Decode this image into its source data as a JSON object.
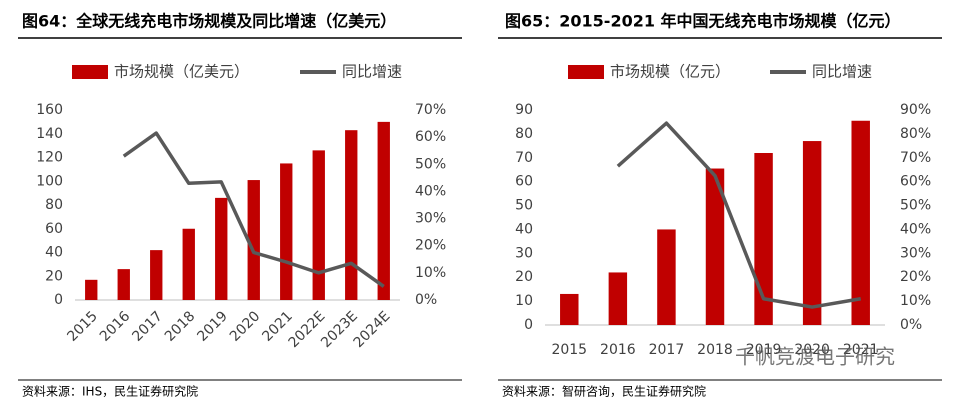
{
  "chart_data": [
    {
      "type": "bar",
      "title": "图64：全球无线充电市场规模及同比增速（亿美元）",
      "source": "资料来源：IHS，民生证券研究院",
      "categories": [
        "2015",
        "2016",
        "2017",
        "2018",
        "2019",
        "2020",
        "2021",
        "2022E",
        "2023E",
        "2024E"
      ],
      "series": [
        {
          "name": "市场规模（亿美元）",
          "color": "#c00000",
          "type": "bar",
          "values": [
            17,
            26,
            42,
            60,
            86,
            101,
            115,
            126,
            143,
            150
          ]
        },
        {
          "name": "同比增速",
          "color": "#595959",
          "type": "line",
          "axis": "y2",
          "values": [
            null,
            53,
            61.5,
            43,
            43.5,
            17.5,
            14,
            10,
            13.5,
            5
          ]
        }
      ],
      "ylim": [
        0,
        160
      ],
      "yticks": [
        0,
        20,
        40,
        60,
        80,
        100,
        120,
        140,
        160
      ],
      "y2lim": [
        0,
        70
      ],
      "y2ticks": [
        {
          "value": 0,
          "label": "0%"
        },
        {
          "value": 10,
          "label": "10%"
        },
        {
          "value": 20,
          "label": "20%"
        },
        {
          "value": 30,
          "label": "30%"
        },
        {
          "value": 40,
          "label": "40%"
        },
        {
          "value": 50,
          "label": "50%"
        },
        {
          "value": 60,
          "label": "60%"
        },
        {
          "value": 70,
          "label": "70%"
        }
      ],
      "x_label_rotation": -45
    },
    {
      "type": "bar",
      "title": "图65：2015-2021 年中国无线充电市场规模（亿元）",
      "source": "资料来源：智研咨询，民生证券研究院",
      "watermark": "千帆竞渡电子研究",
      "categories": [
        "2015",
        "2016",
        "2017",
        "2018",
        "2019",
        "2020",
        "2021"
      ],
      "series": [
        {
          "name": "市场规模（亿元）",
          "color": "#c00000",
          "type": "bar",
          "values": [
            13,
            22,
            40,
            65.5,
            72,
            77,
            85.5
          ]
        },
        {
          "name": "同比增速",
          "color": "#595959",
          "type": "line",
          "axis": "y2",
          "values": [
            null,
            66.5,
            84.5,
            62.5,
            11,
            7.5,
            11
          ]
        }
      ],
      "ylim": [
        0,
        90
      ],
      "yticks": [
        0,
        10,
        20,
        30,
        40,
        50,
        60,
        70,
        80,
        90
      ],
      "y2lim": [
        0,
        90
      ],
      "y2ticks": [
        {
          "value": 0,
          "label": "0%"
        },
        {
          "value": 10,
          "label": "10%"
        },
        {
          "value": 20,
          "label": "20%"
        },
        {
          "value": 30,
          "label": "30%"
        },
        {
          "value": 40,
          "label": "40%"
        },
        {
          "value": 50,
          "label": "50%"
        },
        {
          "value": 60,
          "label": "60%"
        },
        {
          "value": 70,
          "label": "70%"
        },
        {
          "value": 80,
          "label": "80%"
        },
        {
          "value": 90,
          "label": "90%"
        }
      ],
      "x_label_rotation": 0
    }
  ]
}
